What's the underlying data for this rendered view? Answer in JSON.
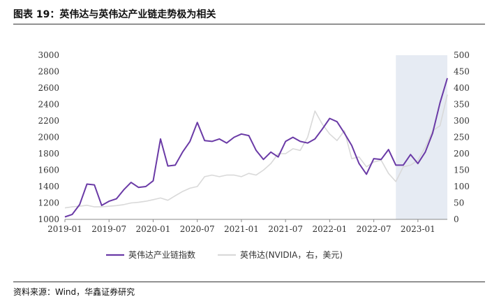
{
  "figure": {
    "title": "图表 19：英伟达与英伟达产业链走势极为相关",
    "source": "资料来源：Wind，华鑫证券研究"
  },
  "colors": {
    "primary_series": "#6a3aa6",
    "secondary_series": "#d9d9d9",
    "highlight_band": "#e6ebf3"
  },
  "chart_data": {
    "type": "line",
    "x_ticks": [
      "2019-01",
      "2019-07",
      "2020-01",
      "2020-07",
      "2021-01",
      "2021-07",
      "2022-01",
      "2022-07",
      "2023-01"
    ],
    "y_left": {
      "ticks": [
        1000,
        1200,
        1400,
        1600,
        1800,
        2000,
        2200,
        2400,
        2600,
        2800,
        3000
      ],
      "range": [
        1000,
        3000
      ]
    },
    "y_right": {
      "ticks": [
        0,
        50,
        100,
        150,
        200,
        250,
        300,
        350,
        400,
        450,
        500
      ],
      "range": [
        0,
        500
      ]
    },
    "x_range": [
      "2019-01",
      "2023-05"
    ],
    "highlight": {
      "from": "2022-10",
      "to": "2023-05"
    },
    "series": [
      {
        "name": "英伟达产业链指数",
        "axis": "left",
        "x": [
          "2019-01",
          "2019-02",
          "2019-03",
          "2019-04",
          "2019-05",
          "2019-06",
          "2019-07",
          "2019-08",
          "2019-09",
          "2019-10",
          "2019-11",
          "2019-12",
          "2020-01",
          "2020-02",
          "2020-03",
          "2020-04",
          "2020-05",
          "2020-06",
          "2020-07",
          "2020-08",
          "2020-09",
          "2020-10",
          "2020-11",
          "2020-12",
          "2021-01",
          "2021-02",
          "2021-03",
          "2021-04",
          "2021-05",
          "2021-06",
          "2021-07",
          "2021-08",
          "2021-09",
          "2021-10",
          "2021-11",
          "2021-12",
          "2022-01",
          "2022-02",
          "2022-03",
          "2022-04",
          "2022-05",
          "2022-06",
          "2022-07",
          "2022-08",
          "2022-09",
          "2022-10",
          "2022-11",
          "2022-12",
          "2023-01",
          "2023-02",
          "2023-03",
          "2023-04",
          "2023-05"
        ],
        "values": [
          1030,
          1060,
          1180,
          1430,
          1420,
          1170,
          1220,
          1250,
          1360,
          1450,
          1390,
          1400,
          1470,
          1980,
          1650,
          1660,
          1820,
          1950,
          2180,
          1960,
          1950,
          1980,
          1930,
          2000,
          2040,
          2020,
          1840,
          1730,
          1820,
          1760,
          1950,
          2000,
          1950,
          1930,
          1980,
          2100,
          2230,
          2190,
          2050,
          1900,
          1680,
          1550,
          1740,
          1730,
          1850,
          1660,
          1660,
          1790,
          1680,
          1820,
          2050,
          2420,
          2720
        ]
      },
      {
        "name": "英伟达(NVIDIA，右，美元)",
        "axis": "right",
        "x": [
          "2019-01",
          "2019-02",
          "2019-03",
          "2019-04",
          "2019-05",
          "2019-06",
          "2019-07",
          "2019-08",
          "2019-09",
          "2019-10",
          "2019-11",
          "2019-12",
          "2020-01",
          "2020-02",
          "2020-03",
          "2020-04",
          "2020-05",
          "2020-06",
          "2020-07",
          "2020-08",
          "2020-09",
          "2020-10",
          "2020-11",
          "2020-12",
          "2021-01",
          "2021-02",
          "2021-03",
          "2021-04",
          "2021-05",
          "2021-06",
          "2021-07",
          "2021-08",
          "2021-09",
          "2021-10",
          "2021-11",
          "2021-12",
          "2022-01",
          "2022-02",
          "2022-03",
          "2022-04",
          "2022-05",
          "2022-06",
          "2022-07",
          "2022-08",
          "2022-09",
          "2022-10",
          "2022-11",
          "2022-12",
          "2023-01",
          "2023-02",
          "2023-03",
          "2023-04",
          "2023-05"
        ],
        "values": [
          35,
          38,
          40,
          43,
          38,
          38,
          40,
          42,
          45,
          50,
          52,
          55,
          60,
          65,
          58,
          72,
          85,
          95,
          100,
          130,
          135,
          130,
          135,
          135,
          130,
          140,
          135,
          150,
          170,
          200,
          200,
          215,
          210,
          250,
          330,
          290,
          260,
          240,
          270,
          185,
          190,
          160,
          175,
          180,
          140,
          115,
          160,
          165,
          180,
          220,
          270,
          285,
          380
        ]
      }
    ]
  }
}
